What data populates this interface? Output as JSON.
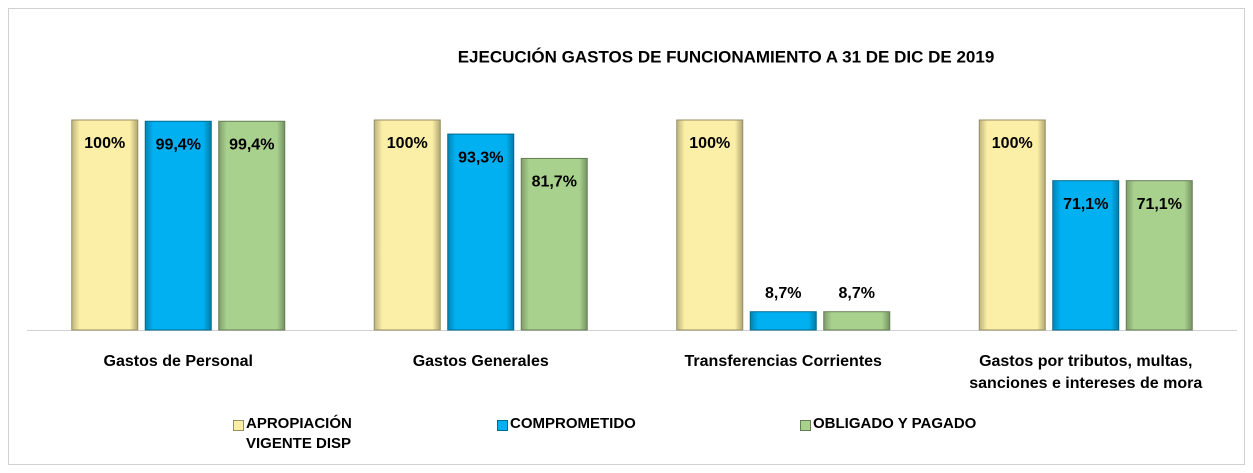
{
  "chart_data": {
    "type": "bar",
    "title": "EJECUCIÓN GASTOS DE FUNCIONAMIENTO A 31  DE DIC DE 2019",
    "categories": [
      "Gastos de Personal",
      "Gastos Generales",
      "Transferencias Corrientes",
      "Gastos por tributos, multas, sanciones e intereses de mora"
    ],
    "series": [
      {
        "name": "APROPIACIÓN VIGENTE DISP",
        "color": "#fbeea6",
        "values": [
          100,
          100,
          100,
          100
        ],
        "value_labels": [
          "100%",
          "100%",
          "100%",
          "100%"
        ]
      },
      {
        "name": "COMPROMETIDO",
        "color": "#00b0f0",
        "values": [
          99.4,
          93.3,
          8.7,
          71.1
        ],
        "value_labels": [
          "99,4%",
          "93,3%",
          "8,7%",
          "71,1%"
        ]
      },
      {
        "name": "OBLIGADO Y PAGADO",
        "color": "#a9d18e",
        "values": [
          99.4,
          81.7,
          8.7,
          71.1
        ],
        "value_labels": [
          "99,4%",
          "81,7%",
          "8,7%",
          "71,1%"
        ]
      }
    ],
    "ylim": [
      0,
      100
    ]
  }
}
